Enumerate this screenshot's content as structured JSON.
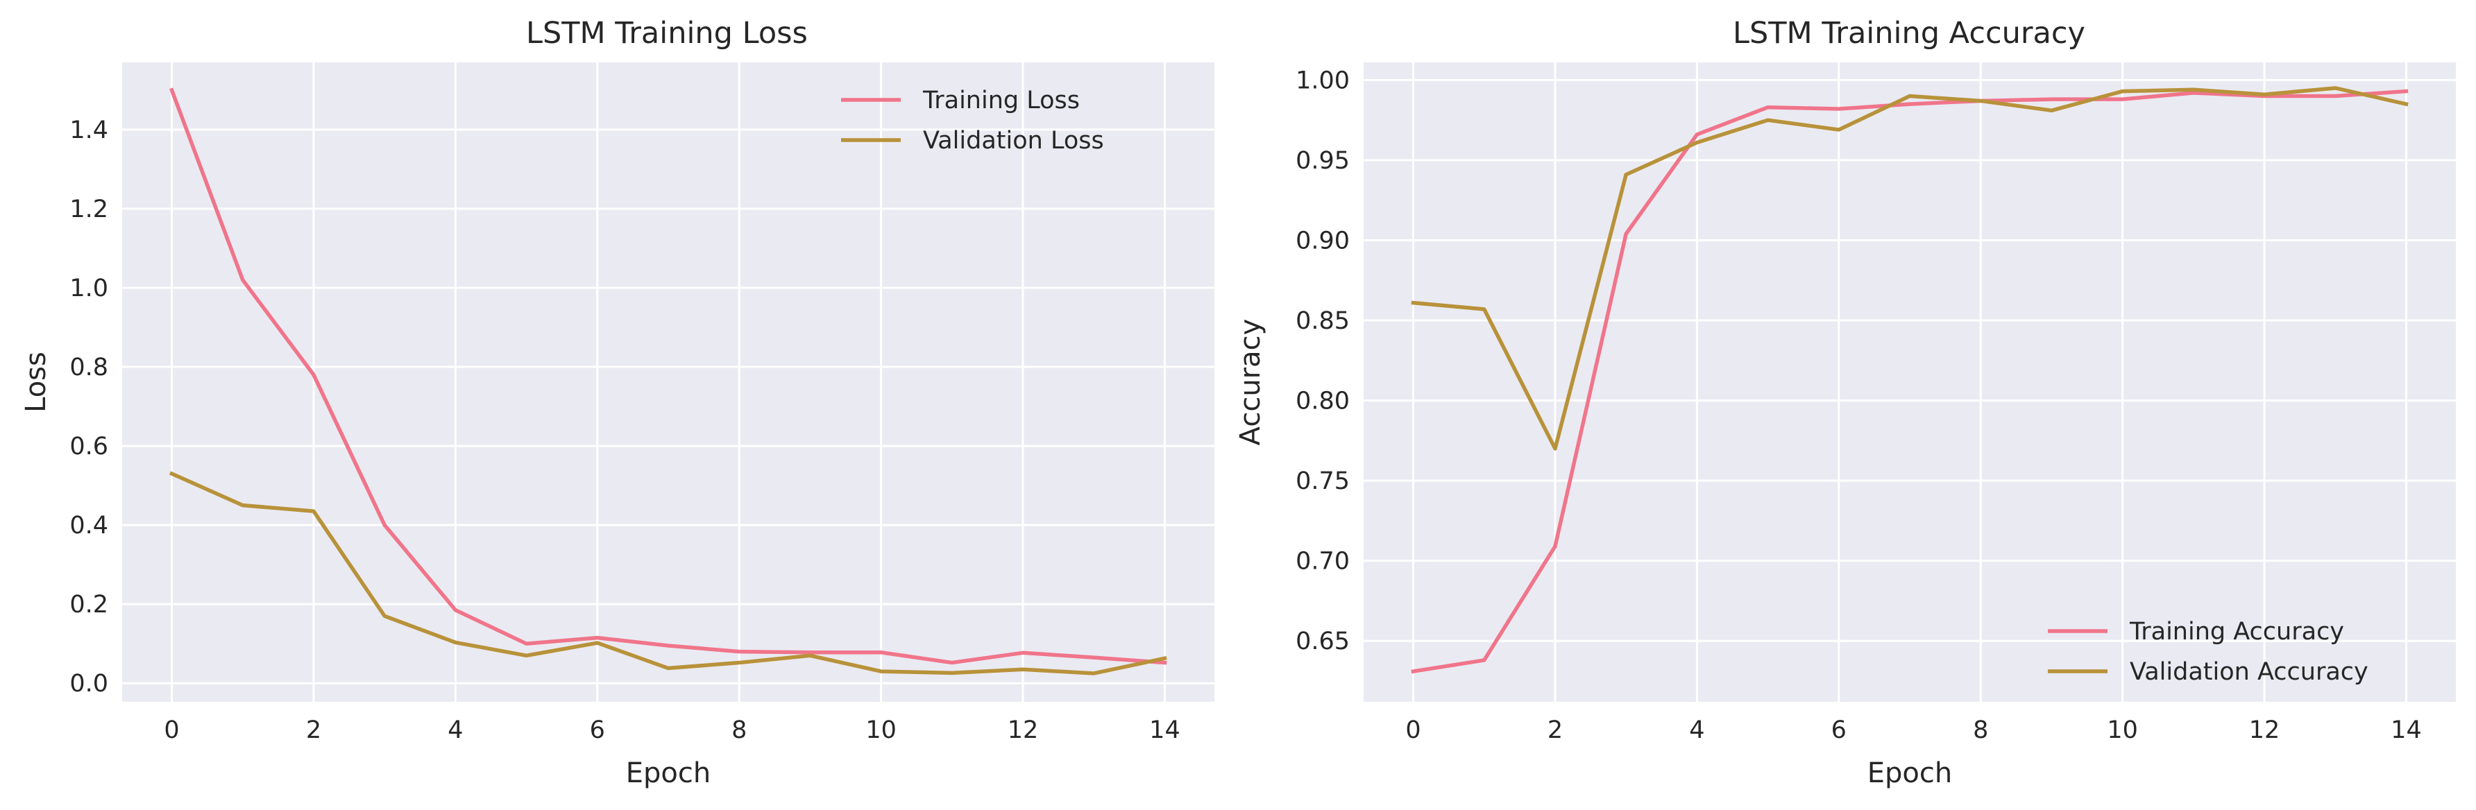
{
  "chart_data": [
    {
      "type": "line",
      "title": "LSTM Training Loss",
      "xlabel": "Epoch",
      "ylabel": "Loss",
      "xlim": [
        -0.7,
        14.7
      ],
      "ylim": [
        -0.047,
        1.57
      ],
      "x": [
        0,
        1,
        2,
        3,
        4,
        5,
        6,
        7,
        8,
        9,
        10,
        11,
        12,
        13,
        14
      ],
      "xticks": [
        0,
        2,
        4,
        6,
        8,
        10,
        12,
        14
      ],
      "xtick_labels": [
        "0",
        "2",
        "4",
        "6",
        "8",
        "10",
        "12",
        "14"
      ],
      "yticks": [
        0.0,
        0.2,
        0.4,
        0.6,
        0.8,
        1.0,
        1.2,
        1.4
      ],
      "ytick_labels": [
        "0.0",
        "0.2",
        "0.4",
        "0.6",
        "0.8",
        "1.0",
        "1.2",
        "1.4"
      ],
      "grid": true,
      "legend": "top-right",
      "series": [
        {
          "name": "Training Loss",
          "color": "#f0758a",
          "values": [
            1.5,
            1.02,
            0.78,
            0.4,
            0.185,
            0.1,
            0.115,
            0.095,
            0.08,
            0.078,
            0.078,
            0.052,
            0.077,
            0.065,
            0.052
          ]
        },
        {
          "name": "Validation Loss",
          "color": "#b8923a",
          "values": [
            0.53,
            0.45,
            0.435,
            0.17,
            0.103,
            0.07,
            0.102,
            0.038,
            0.052,
            0.07,
            0.03,
            0.026,
            0.035,
            0.025,
            0.063
          ]
        }
      ]
    },
    {
      "type": "line",
      "title": "LSTM Training Accuracy",
      "xlabel": "Epoch",
      "ylabel": "Accuracy",
      "xlim": [
        -0.7,
        14.7
      ],
      "ylim": [
        0.612,
        1.011
      ],
      "x": [
        0,
        1,
        2,
        3,
        4,
        5,
        6,
        7,
        8,
        9,
        10,
        11,
        12,
        13,
        14
      ],
      "xticks": [
        0,
        2,
        4,
        6,
        8,
        10,
        12,
        14
      ],
      "xtick_labels": [
        "0",
        "2",
        "4",
        "6",
        "8",
        "10",
        "12",
        "14"
      ],
      "yticks": [
        0.65,
        0.7,
        0.75,
        0.8,
        0.85,
        0.9,
        0.95,
        1.0
      ],
      "ytick_labels": [
        "0.65",
        "0.70",
        "0.75",
        "0.80",
        "0.85",
        "0.90",
        "0.95",
        "1.00"
      ],
      "grid": true,
      "legend": "bottom-right",
      "series": [
        {
          "name": "Training Accuracy",
          "color": "#f0758a",
          "values": [
            0.631,
            0.638,
            0.709,
            0.904,
            0.966,
            0.983,
            0.982,
            0.985,
            0.987,
            0.988,
            0.988,
            0.992,
            0.99,
            0.99,
            0.993
          ]
        },
        {
          "name": "Validation Accuracy",
          "color": "#b8923a",
          "values": [
            0.861,
            0.857,
            0.77,
            0.941,
            0.961,
            0.975,
            0.969,
            0.99,
            0.987,
            0.981,
            0.993,
            0.994,
            0.991,
            0.995,
            0.985
          ]
        }
      ]
    }
  ]
}
